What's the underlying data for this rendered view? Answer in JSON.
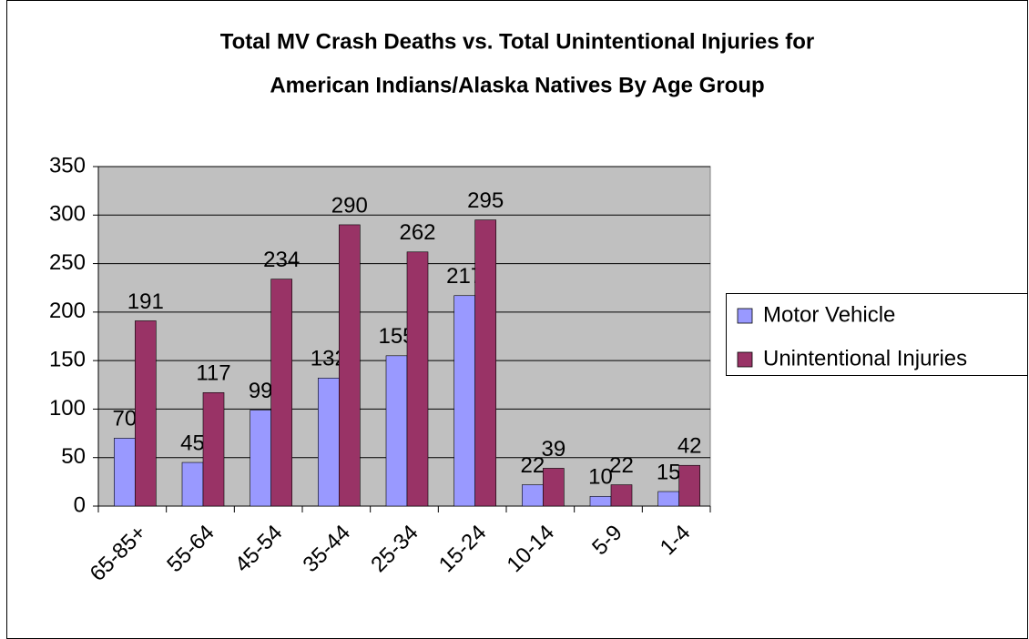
{
  "chart_data": {
    "type": "bar",
    "title": [
      "Total MV Crash Deaths vs. Total Unintentional Injuries for",
      "American Indians/Alaska Natives By Age Group"
    ],
    "categories": [
      "65-85+",
      "55-64",
      "45-54",
      "35-44",
      "25-34",
      "15-24",
      "10-14",
      "5-9",
      "1-4"
    ],
    "series": [
      {
        "name": "Motor Vehicle",
        "color": "#9999ff",
        "values": [
          70,
          45,
          99,
          132,
          155,
          217,
          22,
          10,
          15
        ]
      },
      {
        "name": "Unintentional Injuries",
        "color": "#993366",
        "values": [
          191,
          117,
          234,
          290,
          262,
          295,
          39,
          22,
          42
        ]
      }
    ],
    "ylim": [
      0,
      350
    ],
    "yticks": [
      0,
      50,
      100,
      150,
      200,
      250,
      300,
      350
    ],
    "grid": true,
    "legend": "right"
  }
}
